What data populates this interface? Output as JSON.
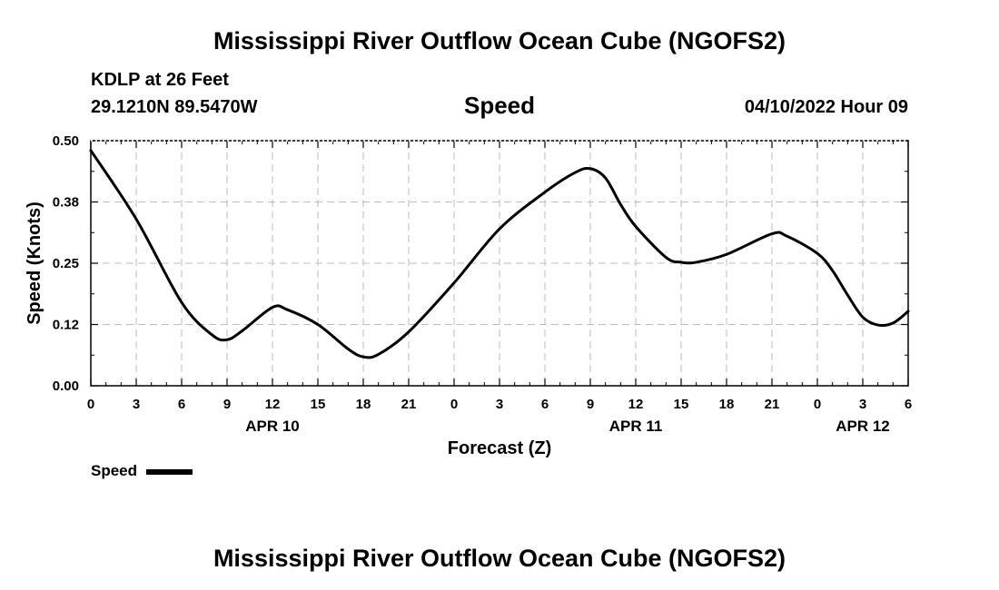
{
  "header": {
    "title": "Mississippi River Outflow Ocean Cube (NGOFS2)",
    "station": "KDLP at 26 Feet",
    "coords": "29.1210N  89.5470W",
    "subtitle": "Speed",
    "datetime": "04/10/2022 Hour 09"
  },
  "footer": {
    "title": "Mississippi River Outflow Ocean Cube (NGOFS2)"
  },
  "legend": {
    "label": "Speed",
    "color": "#000000"
  },
  "chart_data": {
    "type": "line",
    "title": "Speed",
    "xlabel": "Forecast (Z)",
    "ylabel": "Speed (Knots)",
    "xlim": [
      0,
      54
    ],
    "ylim": [
      0,
      0.5
    ],
    "grid": true,
    "yticks": [
      {
        "v": 0,
        "label": "0.00"
      },
      {
        "v": 0.125,
        "label": "0.12"
      },
      {
        "v": 0.25,
        "label": "0.25"
      },
      {
        "v": 0.375,
        "label": "0.38"
      },
      {
        "v": 0.5,
        "label": "0.50"
      }
    ],
    "xticks": [
      {
        "h": 0,
        "label": "0"
      },
      {
        "h": 3,
        "label": "3"
      },
      {
        "h": 6,
        "label": "6"
      },
      {
        "h": 9,
        "label": "9"
      },
      {
        "h": 12,
        "label": "12"
      },
      {
        "h": 15,
        "label": "15"
      },
      {
        "h": 18,
        "label": "18"
      },
      {
        "h": 21,
        "label": "21"
      },
      {
        "h": 24,
        "label": "0"
      },
      {
        "h": 27,
        "label": "3"
      },
      {
        "h": 30,
        "label": "6"
      },
      {
        "h": 33,
        "label": "9"
      },
      {
        "h": 36,
        "label": "12"
      },
      {
        "h": 39,
        "label": "15"
      },
      {
        "h": 42,
        "label": "18"
      },
      {
        "h": 45,
        "label": "21"
      },
      {
        "h": 48,
        "label": "0"
      },
      {
        "h": 51,
        "label": "3"
      },
      {
        "h": 54,
        "label": "6"
      }
    ],
    "date_labels": [
      {
        "h": 12,
        "label": "APR 10"
      },
      {
        "h": 36,
        "label": "APR 11"
      },
      {
        "h": 51,
        "label": "APR 12"
      }
    ],
    "series": [
      {
        "name": "Speed",
        "x": [
          0,
          3,
          6,
          8,
          9,
          10,
          12,
          13,
          15,
          17,
          18,
          19,
          21,
          24,
          27,
          30,
          32,
          33,
          34,
          35,
          36,
          38,
          39,
          40,
          42,
          45,
          46,
          48,
          49,
          50,
          51,
          52,
          53,
          54
        ],
        "y": [
          0.48,
          0.34,
          0.17,
          0.104,
          0.094,
          0.112,
          0.16,
          0.155,
          0.125,
          0.075,
          0.059,
          0.064,
          0.11,
          0.21,
          0.32,
          0.395,
          0.435,
          0.443,
          0.424,
          0.37,
          0.325,
          0.262,
          0.252,
          0.252,
          0.268,
          0.31,
          0.305,
          0.27,
          0.235,
          0.185,
          0.14,
          0.124,
          0.128,
          0.152
        ]
      }
    ]
  }
}
